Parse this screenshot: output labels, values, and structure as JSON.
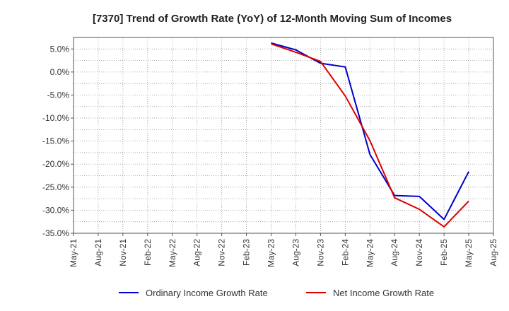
{
  "chart_data": {
    "type": "line",
    "title": "[7370]  Trend of Growth Rate (YoY) of 12-Month Moving Sum of Incomes",
    "xlabel": "",
    "ylabel": "",
    "x_ticks": [
      "May-21",
      "Aug-21",
      "Nov-21",
      "Feb-22",
      "May-22",
      "Aug-22",
      "Nov-22",
      "Feb-23",
      "May-23",
      "Aug-23",
      "Nov-23",
      "Feb-24",
      "May-24",
      "Aug-24",
      "Nov-24",
      "Feb-25",
      "May-25",
      "Aug-25"
    ],
    "y_ticks": [
      "5.0%",
      "0.0%",
      "-5.0%",
      "-10.0%",
      "-15.0%",
      "-20.0%",
      "-25.0%",
      "-30.0%",
      "-35.0%"
    ],
    "ylim": [
      -35,
      7.5
    ],
    "grid": true,
    "legend_position": "bottom",
    "series": [
      {
        "name": "Ordinary Income Growth Rate",
        "color": "#0000cc",
        "x": [
          "May-23",
          "Aug-23",
          "Nov-23",
          "Feb-24",
          "May-24",
          "Aug-24",
          "Nov-24",
          "Feb-25",
          "May-25"
        ],
        "values": [
          6.3,
          4.8,
          1.9,
          1.1,
          -17.9,
          -26.8,
          -27.0,
          -32.0,
          -21.6
        ]
      },
      {
        "name": "Net Income Growth Rate",
        "color": "#dd0000",
        "x": [
          "May-23",
          "Aug-23",
          "Nov-23",
          "Feb-24",
          "May-24",
          "Aug-24",
          "Nov-24",
          "Feb-25",
          "May-25"
        ],
        "values": [
          6.1,
          4.3,
          2.3,
          -5.2,
          -14.9,
          -27.3,
          -29.8,
          -33.6,
          -28.0
        ]
      }
    ]
  }
}
